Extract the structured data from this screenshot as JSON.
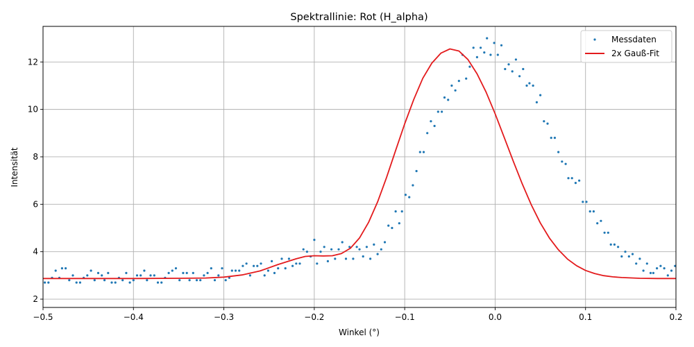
{
  "chart_data": {
    "type": "scatter",
    "title": "Spektrallinie: Rot (H_alpha)",
    "xlabel": "Winkel (°)",
    "ylabel": "Intensität",
    "xlim": [
      -0.5,
      0.2
    ],
    "ylim": [
      1.65,
      13.5
    ],
    "x_ticks": [
      -0.5,
      -0.4,
      -0.3,
      -0.2,
      -0.1,
      0.0,
      0.1,
      0.2
    ],
    "x_tick_labels": [
      "−0.5",
      "−0.4",
      "−0.3",
      "−0.2",
      "−0.1",
      "0.0",
      "0.1",
      "0.2"
    ],
    "y_ticks": [
      2,
      4,
      6,
      8,
      10,
      12
    ],
    "y_tick_labels": [
      "2",
      "4",
      "6",
      "8",
      "10",
      "12"
    ],
    "grid": true,
    "legend_position": "top-right",
    "series": [
      {
        "name": "Messdaten",
        "kind": "scatter",
        "color": "#1f77b4",
        "points": [
          [
            -0.498,
            2.7
          ],
          [
            -0.494,
            2.7
          ],
          [
            -0.49,
            2.9
          ],
          [
            -0.486,
            3.2
          ],
          [
            -0.482,
            2.9
          ],
          [
            -0.479,
            3.3
          ],
          [
            -0.475,
            3.3
          ],
          [
            -0.471,
            2.8
          ],
          [
            -0.467,
            3.0
          ],
          [
            -0.463,
            2.7
          ],
          [
            -0.459,
            2.7
          ],
          [
            -0.455,
            2.9
          ],
          [
            -0.451,
            3.0
          ],
          [
            -0.447,
            3.2
          ],
          [
            -0.443,
            2.8
          ],
          [
            -0.439,
            3.1
          ],
          [
            -0.435,
            3.0
          ],
          [
            -0.432,
            2.8
          ],
          [
            -0.428,
            3.1
          ],
          [
            -0.424,
            2.7
          ],
          [
            -0.42,
            2.7
          ],
          [
            -0.416,
            2.9
          ],
          [
            -0.412,
            2.8
          ],
          [
            -0.408,
            3.1
          ],
          [
            -0.404,
            2.7
          ],
          [
            -0.4,
            2.8
          ],
          [
            -0.396,
            3.0
          ],
          [
            -0.392,
            3.0
          ],
          [
            -0.388,
            3.2
          ],
          [
            -0.385,
            2.8
          ],
          [
            -0.381,
            3.0
          ],
          [
            -0.377,
            3.0
          ],
          [
            -0.373,
            2.7
          ],
          [
            -0.369,
            2.7
          ],
          [
            -0.365,
            2.9
          ],
          [
            -0.361,
            3.1
          ],
          [
            -0.357,
            3.2
          ],
          [
            -0.353,
            3.3
          ],
          [
            -0.349,
            2.8
          ],
          [
            -0.345,
            3.1
          ],
          [
            -0.341,
            3.1
          ],
          [
            -0.338,
            2.8
          ],
          [
            -0.334,
            3.1
          ],
          [
            -0.33,
            2.8
          ],
          [
            -0.326,
            2.8
          ],
          [
            -0.322,
            3.0
          ],
          [
            -0.318,
            3.1
          ],
          [
            -0.314,
            3.3
          ],
          [
            -0.31,
            2.8
          ],
          [
            -0.306,
            3.0
          ],
          [
            -0.302,
            3.3
          ],
          [
            -0.298,
            2.8
          ],
          [
            -0.294,
            2.9
          ],
          [
            -0.291,
            3.2
          ],
          [
            -0.287,
            3.2
          ],
          [
            -0.283,
            3.2
          ],
          [
            -0.279,
            3.4
          ],
          [
            -0.275,
            3.5
          ],
          [
            -0.271,
            3.0
          ],
          [
            -0.267,
            3.4
          ],
          [
            -0.263,
            3.4
          ],
          [
            -0.259,
            3.5
          ],
          [
            -0.255,
            3.0
          ],
          [
            -0.251,
            3.2
          ],
          [
            -0.247,
            3.6
          ],
          [
            -0.244,
            3.1
          ],
          [
            -0.24,
            3.3
          ],
          [
            -0.236,
            3.7
          ],
          [
            -0.232,
            3.3
          ],
          [
            -0.228,
            3.7
          ],
          [
            -0.224,
            3.4
          ],
          [
            -0.22,
            3.5
          ],
          [
            -0.216,
            3.5
          ],
          [
            -0.212,
            4.1
          ],
          [
            -0.208,
            4.0
          ],
          [
            -0.204,
            3.8
          ],
          [
            -0.2,
            4.5
          ],
          [
            -0.197,
            3.5
          ],
          [
            -0.193,
            4.0
          ],
          [
            -0.189,
            4.2
          ],
          [
            -0.185,
            3.6
          ],
          [
            -0.181,
            4.1
          ],
          [
            -0.177,
            3.7
          ],
          [
            -0.173,
            4.1
          ],
          [
            -0.169,
            4.4
          ],
          [
            -0.165,
            3.7
          ],
          [
            -0.161,
            4.2
          ],
          [
            -0.157,
            3.7
          ],
          [
            -0.153,
            4.2
          ],
          [
            -0.15,
            4.1
          ],
          [
            -0.146,
            3.8
          ],
          [
            -0.142,
            4.2
          ],
          [
            -0.138,
            3.7
          ],
          [
            -0.134,
            4.3
          ],
          [
            -0.13,
            3.9
          ],
          [
            -0.126,
            4.1
          ],
          [
            -0.122,
            4.4
          ],
          [
            -0.118,
            5.1
          ],
          [
            -0.114,
            5.0
          ],
          [
            -0.11,
            5.7
          ],
          [
            -0.106,
            5.2
          ],
          [
            -0.103,
            5.7
          ],
          [
            -0.099,
            6.4
          ],
          [
            -0.095,
            6.3
          ],
          [
            -0.091,
            6.8
          ],
          [
            -0.087,
            7.4
          ],
          [
            -0.083,
            8.2
          ],
          [
            -0.079,
            8.2
          ],
          [
            -0.075,
            9.0
          ],
          [
            -0.071,
            9.5
          ],
          [
            -0.067,
            9.3
          ],
          [
            -0.063,
            9.9
          ],
          [
            -0.059,
            9.9
          ],
          [
            -0.056,
            10.5
          ],
          [
            -0.052,
            10.4
          ],
          [
            -0.048,
            11.0
          ],
          [
            -0.044,
            10.8
          ],
          [
            -0.04,
            11.2
          ],
          [
            -0.036,
            12.3
          ],
          [
            -0.032,
            11.3
          ],
          [
            -0.028,
            11.8
          ],
          [
            -0.024,
            12.6
          ],
          [
            -0.02,
            12.2
          ],
          [
            -0.016,
            12.6
          ],
          [
            -0.012,
            12.4
          ],
          [
            -0.009,
            13.0
          ],
          [
            -0.005,
            12.3
          ],
          [
            -0.001,
            12.8
          ],
          [
            0.003,
            12.3
          ],
          [
            0.007,
            12.7
          ],
          [
            0.011,
            11.7
          ],
          [
            0.015,
            11.9
          ],
          [
            0.019,
            11.6
          ],
          [
            0.023,
            12.1
          ],
          [
            0.027,
            11.4
          ],
          [
            0.031,
            11.7
          ],
          [
            0.035,
            11.0
          ],
          [
            0.038,
            11.1
          ],
          [
            0.042,
            11.0
          ],
          [
            0.046,
            10.3
          ],
          [
            0.05,
            10.6
          ],
          [
            0.054,
            9.5
          ],
          [
            0.058,
            9.4
          ],
          [
            0.062,
            8.8
          ],
          [
            0.066,
            8.8
          ],
          [
            0.07,
            8.2
          ],
          [
            0.074,
            7.8
          ],
          [
            0.078,
            7.7
          ],
          [
            0.081,
            7.1
          ],
          [
            0.085,
            7.1
          ],
          [
            0.089,
            6.9
          ],
          [
            0.093,
            7.0
          ],
          [
            0.097,
            6.1
          ],
          [
            0.101,
            6.1
          ],
          [
            0.105,
            5.7
          ],
          [
            0.109,
            5.7
          ],
          [
            0.113,
            5.2
          ],
          [
            0.117,
            5.3
          ],
          [
            0.121,
            4.8
          ],
          [
            0.125,
            4.8
          ],
          [
            0.128,
            4.3
          ],
          [
            0.132,
            4.3
          ],
          [
            0.136,
            4.2
          ],
          [
            0.14,
            3.8
          ],
          [
            0.144,
            4.0
          ],
          [
            0.148,
            3.8
          ],
          [
            0.152,
            3.9
          ],
          [
            0.156,
            3.5
          ],
          [
            0.16,
            3.7
          ],
          [
            0.164,
            3.2
          ],
          [
            0.168,
            3.5
          ],
          [
            0.172,
            3.1
          ],
          [
            0.175,
            3.1
          ],
          [
            0.179,
            3.3
          ],
          [
            0.183,
            3.4
          ],
          [
            0.187,
            3.3
          ],
          [
            0.191,
            3.0
          ],
          [
            0.195,
            3.2
          ],
          [
            0.199,
            3.4
          ]
        ]
      },
      {
        "name": "2x Gauß-Fit",
        "kind": "line",
        "color": "#e31a1c",
        "points": [
          [
            -0.5,
            2.87
          ],
          [
            -0.45,
            2.87
          ],
          [
            -0.4,
            2.87
          ],
          [
            -0.35,
            2.88
          ],
          [
            -0.32,
            2.89
          ],
          [
            -0.3,
            2.93
          ],
          [
            -0.28,
            3.02
          ],
          [
            -0.26,
            3.19
          ],
          [
            -0.24,
            3.46
          ],
          [
            -0.22,
            3.7
          ],
          [
            -0.21,
            3.8
          ],
          [
            -0.2,
            3.83
          ],
          [
            -0.19,
            3.82
          ],
          [
            -0.18,
            3.83
          ],
          [
            -0.17,
            3.92
          ],
          [
            -0.16,
            4.15
          ],
          [
            -0.15,
            4.58
          ],
          [
            -0.14,
            5.23
          ],
          [
            -0.13,
            6.1
          ],
          [
            -0.12,
            7.14
          ],
          [
            -0.11,
            8.27
          ],
          [
            -0.1,
            9.39
          ],
          [
            -0.09,
            10.42
          ],
          [
            -0.08,
            11.31
          ],
          [
            -0.07,
            11.95
          ],
          [
            -0.06,
            12.37
          ],
          [
            -0.05,
            12.55
          ],
          [
            -0.04,
            12.46
          ],
          [
            -0.03,
            12.1
          ],
          [
            -0.02,
            11.5
          ],
          [
            -0.01,
            10.73
          ],
          [
            0.0,
            9.82
          ],
          [
            0.01,
            8.82
          ],
          [
            0.02,
            7.82
          ],
          [
            0.03,
            6.86
          ],
          [
            0.04,
            5.98
          ],
          [
            0.05,
            5.21
          ],
          [
            0.06,
            4.58
          ],
          [
            0.07,
            4.08
          ],
          [
            0.08,
            3.69
          ],
          [
            0.09,
            3.41
          ],
          [
            0.1,
            3.21
          ],
          [
            0.11,
            3.08
          ],
          [
            0.12,
            2.99
          ],
          [
            0.13,
            2.94
          ],
          [
            0.14,
            2.91
          ],
          [
            0.16,
            2.88
          ],
          [
            0.18,
            2.87
          ],
          [
            0.2,
            2.87
          ]
        ]
      }
    ]
  }
}
